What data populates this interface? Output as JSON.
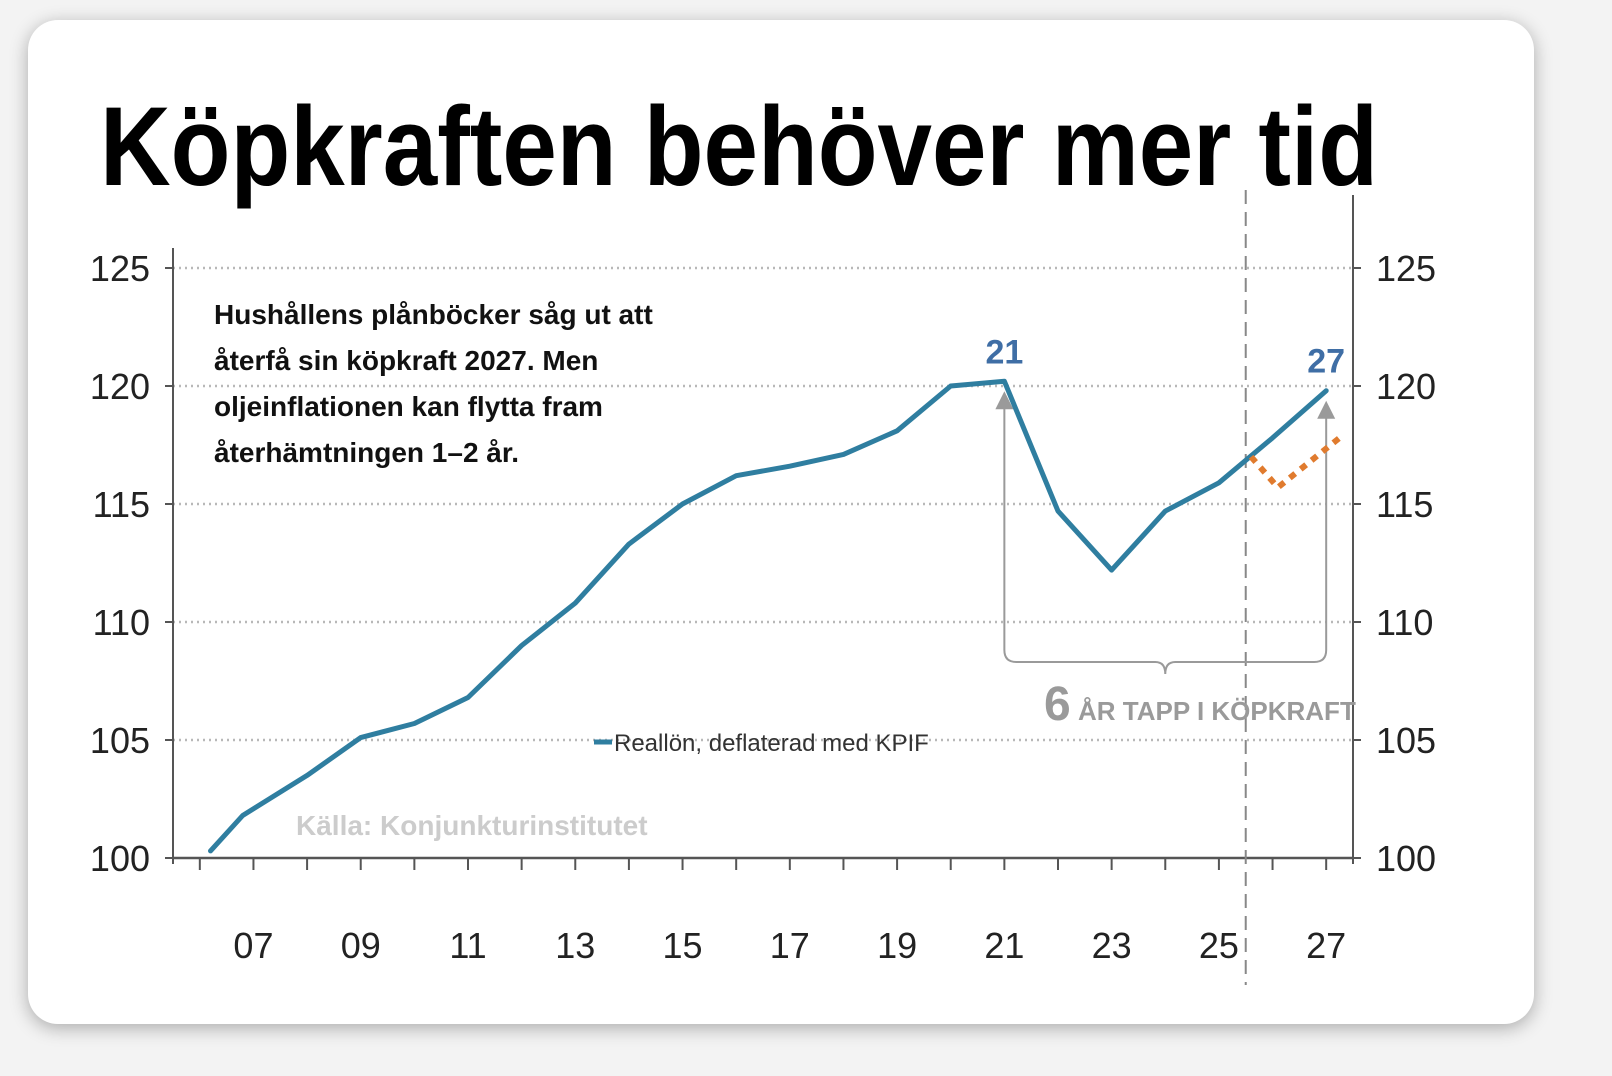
{
  "headline": "Köpkraften behöver mer tid",
  "annotation_lines": [
    "Hushållens plånböcker såg ut att",
    "återfå sin köpkraft 2027. Men",
    "oljeinflationen kan flytta fram",
    "återhämtningen 1–2 år."
  ],
  "source": "Källa: Konjunkturinstitutet",
  "span_label": {
    "number": "6",
    "text": "ÅR TAPP I KÖPKRAFT"
  },
  "markers": [
    {
      "label": "21",
      "x": 2021,
      "y": 120.2
    },
    {
      "label": "27",
      "x": 2027,
      "y": 119.8
    }
  ],
  "colors": {
    "series": "#2f7ea0",
    "projection": "#e07b2e",
    "marker_text": "#3f6ea5",
    "bracket": "#9a9a9a"
  },
  "chart_data": {
    "type": "line",
    "title": "Köpkraften behöver mer tid",
    "xlabel": "",
    "ylabel": "",
    "xlim": [
      2005.5,
      2027.5
    ],
    "ylim": [
      100,
      125
    ],
    "yticks": [
      100,
      105,
      110,
      115,
      120,
      125
    ],
    "xtick_values": [
      2007,
      2009,
      2011,
      2013,
      2015,
      2017,
      2019,
      2021,
      2023,
      2025,
      2027
    ],
    "xtick_labels": [
      "07",
      "09",
      "11",
      "13",
      "15",
      "17",
      "19",
      "21",
      "23",
      "25",
      "27"
    ],
    "grid": "horizontal dotted",
    "legend_position": "bottom-center",
    "series": [
      {
        "name": "Reallön, deflaterad med KPIF",
        "x": [
          2006.2,
          2006.8,
          2008,
          2009,
          2010,
          2011,
          2012,
          2013,
          2014,
          2015,
          2016,
          2017,
          2018,
          2019,
          2020,
          2021,
          2022,
          2023,
          2024,
          2025,
          2026,
          2027
        ],
        "values": [
          100.3,
          101.8,
          103.5,
          105.1,
          105.7,
          106.8,
          109.0,
          110.8,
          113.3,
          115.0,
          116.2,
          116.6,
          117.1,
          118.1,
          120.0,
          120.2,
          114.7,
          112.2,
          114.7,
          115.9,
          117.8,
          119.8
        ]
      },
      {
        "name": "",
        "style": "dotted",
        "x": [
          2025.6,
          2026.1,
          2027.3
        ],
        "values": [
          117.0,
          115.7,
          117.9
        ]
      }
    ]
  }
}
